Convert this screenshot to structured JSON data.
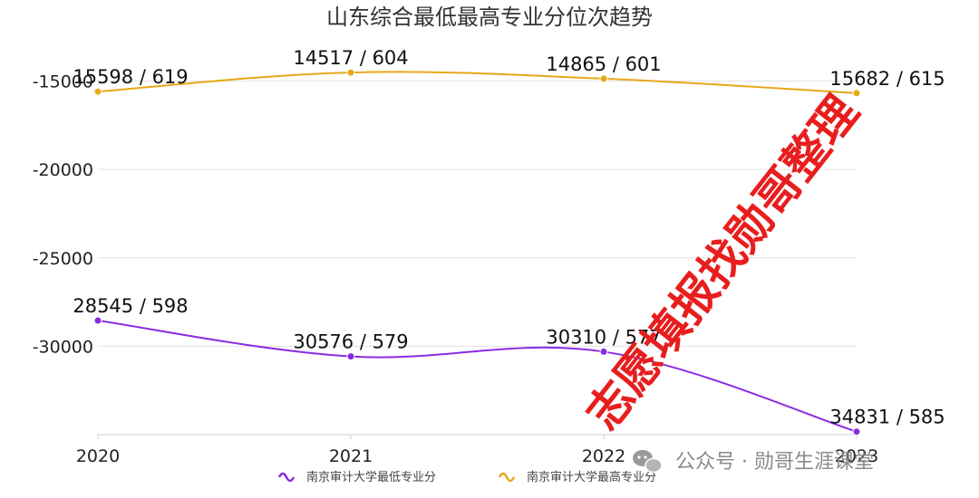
{
  "chart_data": {
    "type": "line",
    "title": "山东综合最低最高专业分位次趋势",
    "categories": [
      "2020",
      "2021",
      "2022",
      "2023"
    ],
    "y_ticks": [
      "-15000",
      "-20000",
      "-25000",
      "-30000"
    ],
    "ylim": [
      -35000,
      -14000
    ],
    "grid": true,
    "legend_position": "bottom",
    "series": [
      {
        "name": "南京审计大学最低专业分",
        "color": "#8a2be2",
        "values": [
          -28545,
          -30576,
          -30310,
          -34831
        ],
        "labels": [
          "28545 / 598",
          "30576 / 579",
          "30310 / 577",
          "34831 / 585"
        ]
      },
      {
        "name": "南京审计大学最高专业分",
        "color": "#e6a817",
        "values": [
          -15598,
          -14517,
          -14865,
          -15682
        ],
        "labels": [
          "15598 / 619",
          "14517 / 604",
          "14865 / 601",
          "15682 / 615"
        ]
      }
    ]
  },
  "watermark": {
    "text": "志愿填报找勋哥整理",
    "color": "#e81e1e"
  },
  "footer": {
    "text": "公众号 · 勋哥生涯课堂",
    "icon": "wechat-icon"
  }
}
